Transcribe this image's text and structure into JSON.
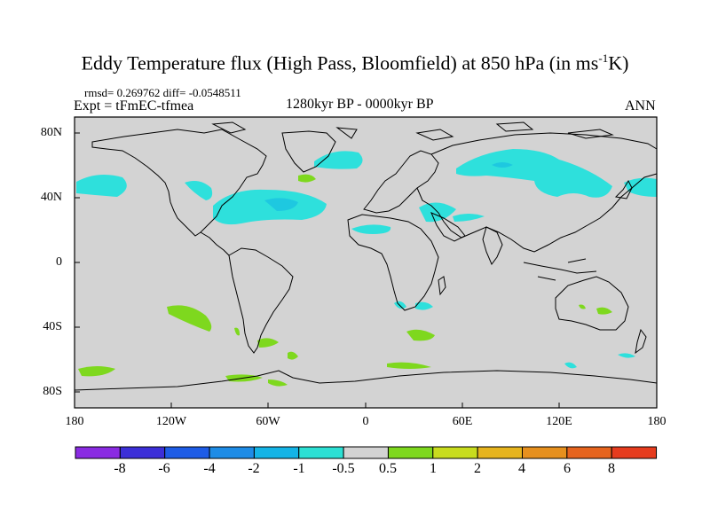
{
  "title": {
    "main": "Eddy Temperature flux (High Pass, Bloomfield) at 850 hPa (in ms",
    "superscript": "-1",
    "suffix": "K)"
  },
  "stats_line": "rmsd= 0.269762 diff= -0.0548511",
  "experiment": "Expt = tFmEC-tfmea",
  "period": "1280kyr BP - 0000kyr BP",
  "season": "ANN",
  "y_axis_labels": [
    "80N",
    "40N",
    "0",
    "40S",
    "80S"
  ],
  "x_axis_labels": [
    "180",
    "120W",
    "60W",
    "0",
    "60E",
    "120E",
    "180"
  ],
  "colorbar": {
    "labels": [
      "-8",
      "-6",
      "-4",
      "-2",
      "-1",
      "-0.5",
      "0.5",
      "1",
      "2",
      "4",
      "6",
      "8"
    ],
    "colors": [
      "#8a2be2",
      "#3c2fd8",
      "#1e5ce6",
      "#1e8ce6",
      "#14b4e6",
      "#2ce0d4",
      "#d3d3d3",
      "#7ed81e",
      "#c8dc1e",
      "#e6b41e",
      "#e6901e",
      "#e6641e",
      "#e63c1e"
    ]
  },
  "field_colors": {
    "land_bg": "#d3d3d3",
    "negative": "#2ee0dc",
    "negative_core": "#1ec8e0",
    "positive": "#7ed81e"
  }
}
